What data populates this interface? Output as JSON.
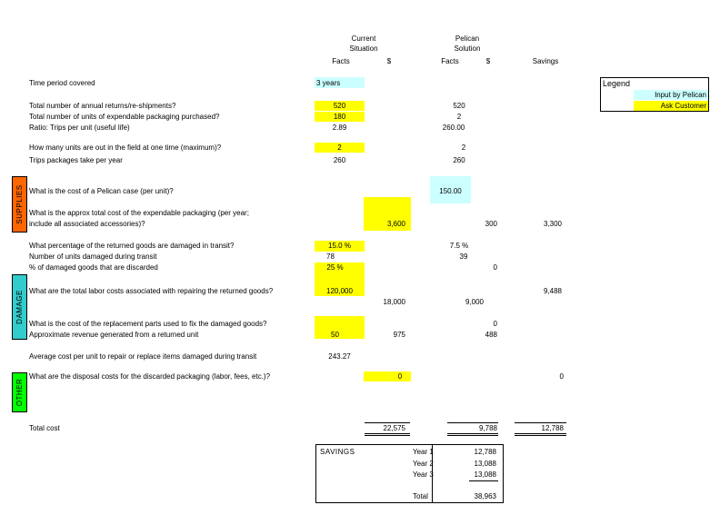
{
  "headers": {
    "current_line1": "Current",
    "current_line2": "Situation",
    "pelican_line1": "Pelican",
    "pelican_line2": "Solution",
    "facts": "Facts",
    "dollar": "$",
    "facts2": "Facts",
    "dollar2": "$",
    "savings": "Savings"
  },
  "legend": {
    "title": "Legend",
    "input_by_pelican": "Input by Pelican",
    "ask_customer": "Ask Customer",
    "colors": {
      "input": "#ccffff",
      "ask": "#ffff00"
    }
  },
  "sections": {
    "supplies": {
      "label": "SUPPLIES",
      "color": "#ff6600"
    },
    "damage": {
      "label": "DAMAGE",
      "color": "#33cccc"
    },
    "other": {
      "label": "OTHER",
      "color": "#00ff00"
    }
  },
  "rows": {
    "time_period": {
      "label": "Time period covered",
      "cur_facts": "3 years"
    },
    "annual_returns": {
      "label": "Total number of annual returns/re-shipments?",
      "cur_facts": "520",
      "pel_facts": "520"
    },
    "units_purchased": {
      "label": "Total number of units of expendable packaging purchased?",
      "cur_facts": "180",
      "pel_facts": "2"
    },
    "ratio": {
      "label": "Ratio: Trips per unit (useful life)",
      "cur_facts": "2.89",
      "pel_facts": "260.00"
    },
    "units_in_field": {
      "label": "How many units are out in the field at one time (maximum)?",
      "cur_facts": "2",
      "pel_facts": "2"
    },
    "trips_per_year": {
      "label": "Trips packages take per year",
      "cur_facts": "260",
      "pel_facts": "260"
    },
    "pelican_case_cost": {
      "label": "What is the cost of a Pelican case (per unit)?",
      "pel_facts": "150.00"
    },
    "expendable_cost": {
      "label_line1": "What is the approx total cost of the expendable packaging (per year;",
      "label_line2": "include all associated accessories)?",
      "cur_dollar": "3,600",
      "pel_dollar": "300",
      "savings": "3,300"
    },
    "pct_damaged": {
      "label": "What percentage of the returned goods are damaged in transit?",
      "cur_facts": "15.0 %",
      "pel_facts": "7.5 %"
    },
    "units_damaged": {
      "label": "Number of units damaged during transit",
      "cur_facts": "78",
      "pel_facts": "39"
    },
    "pct_discarded": {
      "label": "% of damaged goods that are discarded",
      "cur_facts": "25 %",
      "pel_dollar": "0"
    },
    "labor_costs": {
      "label": "What are the total labor costs associated with repairing the returned goods?",
      "cur_facts": "120,000",
      "savings": "9,488"
    },
    "labor_costs_sub": {
      "cur_dollar": "18,000",
      "pel_dollar": "9,000"
    },
    "replacement_parts": {
      "label": "What is the cost of the replacement parts used to fix the damaged goods?",
      "pel_dollar": "0"
    },
    "revenue": {
      "label": "Approximate revenue generated from a returned unit",
      "cur_facts": "50",
      "cur_dollar": "975",
      "pel_dollar": "488"
    },
    "avg_cost": {
      "label": "Average cost per unit to repair or replace items damaged during transit",
      "cur_facts": "243.27"
    },
    "disposal": {
      "label": "What are the disposal costs for the discarded packaging (labor, fees, etc.)?",
      "cur_dollar": "0",
      "savings": "0"
    },
    "total_cost": {
      "label": "Total cost",
      "cur_dollar": "22,575",
      "pel_dollar": "9,788",
      "savings": "12,788"
    }
  },
  "savings_box": {
    "title": "SAVINGS",
    "year1_label": "Year 1",
    "year1_value": "12,788",
    "year2_label": "Year 2",
    "year2_value": "13,088",
    "year3_label": "Year 3",
    "year3_value": "13,088",
    "total_label": "Total",
    "total_value": "38,963"
  }
}
